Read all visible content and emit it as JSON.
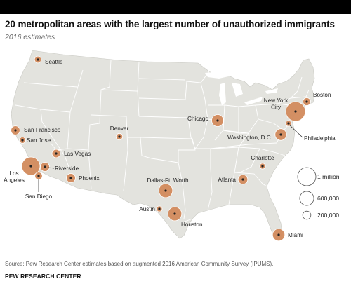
{
  "title": "20 metropolitan areas with the largest number of unauthorized immigrants",
  "subtitle": "2016 estimates",
  "source": "Source: Pew Research Center estimates based on augmented 2016 American Community Survey (IPUMS).",
  "brand": "PEW RESEARCH CENTER",
  "colors": {
    "land": "#e3e3de",
    "state_border": "#ffffff",
    "bubble_fill": "#d28a5c",
    "bubble_stroke": "#ffffff",
    "label": "#222222",
    "legend_stroke": "#555555"
  },
  "legend": {
    "items": [
      {
        "label": "1 million",
        "value": 1000000
      },
      {
        "label": "600,000",
        "value": 600000
      },
      {
        "label": "200,000",
        "value": 200000
      }
    ]
  },
  "metros": [
    {
      "name": "Seattle",
      "value": 140000
    },
    {
      "name": "San Francisco",
      "value": 240000
    },
    {
      "name": "San Jose",
      "value": 120000
    },
    {
      "name": "Los Angeles",
      "value": 1000000
    },
    {
      "name": "Riverside",
      "value": 250000
    },
    {
      "name": "San Diego",
      "value": 170000
    },
    {
      "name": "Las Vegas",
      "value": 210000
    },
    {
      "name": "Phoenix",
      "value": 250000
    },
    {
      "name": "Denver",
      "value": 130000
    },
    {
      "name": "Dallas-Ft. Worth",
      "value": 575000
    },
    {
      "name": "Austin",
      "value": 100000
    },
    {
      "name": "Houston",
      "value": 575000
    },
    {
      "name": "Chicago",
      "value": 425000
    },
    {
      "name": "Atlanta",
      "value": 275000
    },
    {
      "name": "Charlotte",
      "value": 100000
    },
    {
      "name": "Miami",
      "value": 450000
    },
    {
      "name": "Washington, D.C.",
      "value": 400000
    },
    {
      "name": "Philadelphia",
      "value": 100000
    },
    {
      "name": "New York City",
      "value": 1150000
    },
    {
      "name": "Boston",
      "value": 180000
    }
  ]
}
